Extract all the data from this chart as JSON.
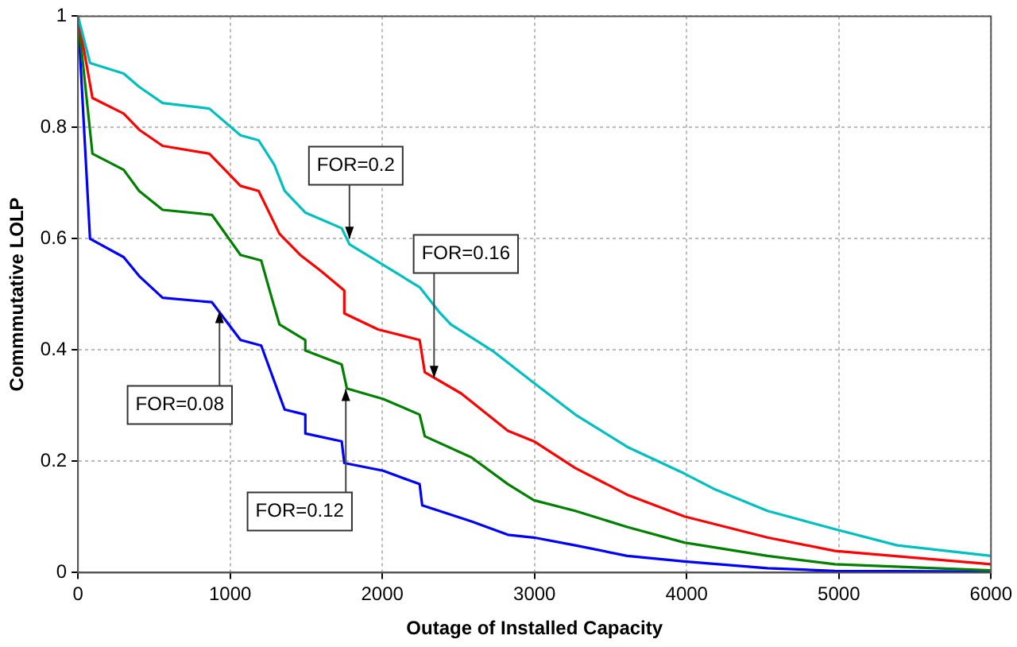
{
  "chart_data": {
    "type": "line",
    "xlabel": "Outage of Installed Capacity",
    "ylabel": "Commmutative LOLP",
    "xlim": [
      0,
      6000
    ],
    "xticks": [
      0,
      1000,
      2000,
      3000,
      4000,
      5000,
      6000
    ],
    "ylim": [
      0,
      1
    ],
    "yticks": [
      0,
      0.2,
      0.4,
      0.6,
      0.8,
      1
    ],
    "grid": true,
    "legend": false,
    "marker": "none",
    "line_style": "solid",
    "series": [
      {
        "color": "#00bfbf",
        "x": [
          0,
          79,
          300,
          402,
          556,
          863,
          1068,
          1187,
          1290,
          1358,
          1494,
          1733,
          1784,
          2245,
          2381,
          2450,
          2722,
          2996,
          3268,
          3609,
          3985,
          4190,
          4531,
          4974,
          5384,
          6000
        ],
        "values": [
          1,
          0.916,
          0.897,
          0.873,
          0.844,
          0.834,
          0.786,
          0.777,
          0.733,
          0.686,
          0.647,
          0.619,
          0.59,
          0.513,
          0.466,
          0.446,
          0.399,
          0.341,
          0.284,
          0.226,
          0.178,
          0.149,
          0.111,
          0.078,
          0.049,
          0.03
        ]
      },
      {
        "color": "#ff0000",
        "x": [
          0,
          95,
          300,
          402,
          556,
          863,
          1068,
          1187,
          1324,
          1460,
          1597,
          1750,
          1750,
          1972,
          2245,
          2279,
          2518,
          2825,
          2996,
          3268,
          3609,
          3985,
          4531,
          4974,
          6000
        ],
        "values": [
          1,
          0.853,
          0.825,
          0.796,
          0.767,
          0.753,
          0.695,
          0.686,
          0.609,
          0.571,
          0.542,
          0.507,
          0.466,
          0.437,
          0.418,
          0.36,
          0.322,
          0.255,
          0.236,
          0.188,
          0.14,
          0.101,
          0.063,
          0.039,
          0.015
        ]
      },
      {
        "color": "#008000",
        "x": [
          0,
          95,
          300,
          402,
          556,
          880,
          1068,
          1204,
          1273,
          1324,
          1494,
          1494,
          1733,
          1767,
          2006,
          2245,
          2279,
          2586,
          2825,
          2996,
          3268,
          3609,
          3985,
          4531,
          4974,
          6000
        ],
        "values": [
          1,
          0.753,
          0.724,
          0.686,
          0.652,
          0.643,
          0.571,
          0.561,
          0.494,
          0.446,
          0.418,
          0.399,
          0.374,
          0.331,
          0.312,
          0.284,
          0.245,
          0.207,
          0.159,
          0.13,
          0.111,
          0.082,
          0.054,
          0.03,
          0.015,
          0.004
        ]
      },
      {
        "color": "#0000ff",
        "x": [
          0,
          79,
          300,
          402,
          556,
          880,
          1068,
          1204,
          1358,
          1494,
          1494,
          1733,
          1750,
          2006,
          2245,
          2262,
          2586,
          2825,
          2996,
          3268,
          3609,
          3985,
          4531,
          4974,
          6000
        ],
        "values": [
          1,
          0.6,
          0.567,
          0.533,
          0.494,
          0.486,
          0.418,
          0.408,
          0.293,
          0.284,
          0.25,
          0.236,
          0.197,
          0.183,
          0.159,
          0.121,
          0.092,
          0.068,
          0.063,
          0.049,
          0.03,
          0.02,
          0.008,
          0.003,
          0.002
        ]
      }
    ],
    "annotations": [
      {
        "text": "FOR=0.2",
        "x": 1784,
        "y": 0.6
      },
      {
        "text": "FOR=0.16",
        "x": 2340,
        "y": 0.35
      },
      {
        "text": "FOR=0.08",
        "x": 930,
        "y": 0.47
      },
      {
        "text": "FOR=0.12",
        "x": 1760,
        "y": 0.33
      }
    ]
  }
}
